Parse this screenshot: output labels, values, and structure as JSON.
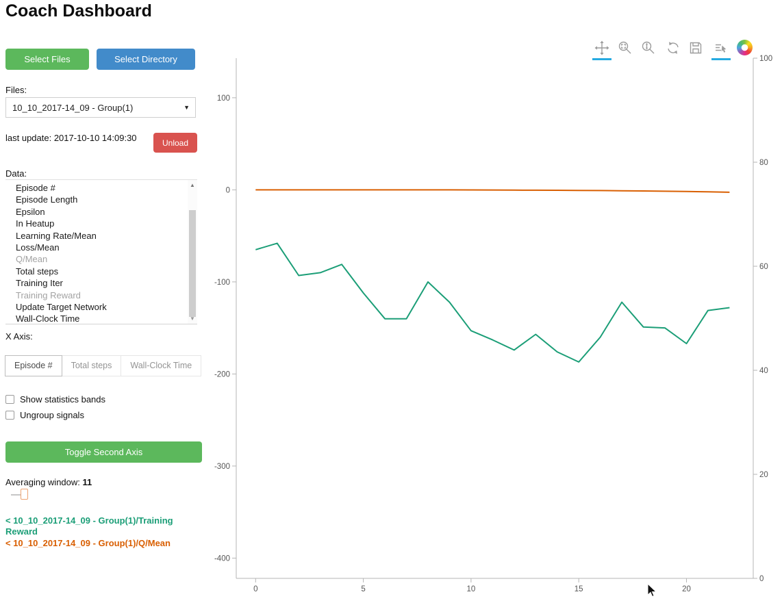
{
  "header": {
    "title": "Coach Dashboard"
  },
  "colors": {
    "success_green": "#5cb85c",
    "primary_blue": "#428bca",
    "danger_red": "#d9534f",
    "active_tool_blue": "#26aae1",
    "series_teal": "#1b9e77",
    "series_orange": "#d95f02"
  },
  "icons": {
    "caret_down": "▼",
    "scroll_up": "▲",
    "scroll_down": "▼"
  },
  "sidebar": {
    "select_files_label": "Select Files",
    "select_directory_label": "Select Directory",
    "files_label": "Files:",
    "files_dropdown_value": "10_10_2017-14_09 - Group(1)",
    "last_update_label": "last update: 2017-10-10 14:09:30",
    "unload_label": "Unload",
    "data_label": "Data:",
    "data_items": [
      {
        "label": "Episode #",
        "dimmed": false
      },
      {
        "label": "Episode Length",
        "dimmed": false
      },
      {
        "label": "Epsilon",
        "dimmed": false
      },
      {
        "label": "In Heatup",
        "dimmed": false
      },
      {
        "label": "Learning Rate/Mean",
        "dimmed": false
      },
      {
        "label": "Loss/Mean",
        "dimmed": false
      },
      {
        "label": "Q/Mean",
        "dimmed": true
      },
      {
        "label": "Total steps",
        "dimmed": false
      },
      {
        "label": "Training Iter",
        "dimmed": false
      },
      {
        "label": "Training Reward",
        "dimmed": true
      },
      {
        "label": "Update Target Network",
        "dimmed": false
      },
      {
        "label": "Wall-Clock Time",
        "dimmed": false
      }
    ],
    "x_axis_label": "X Axis:",
    "x_axis_options": [
      {
        "label": "Episode #",
        "active": true
      },
      {
        "label": "Total steps",
        "active": false
      },
      {
        "label": "Wall-Clock Time",
        "active": false
      }
    ],
    "checkboxes": [
      {
        "label": "Show statistics bands",
        "checked": false
      },
      {
        "label": "Ungroup signals",
        "checked": false
      }
    ],
    "toggle_second_axis_label": "Toggle Second Axis",
    "averaging_window_label": "Averaging window:",
    "averaging_window_value": "11",
    "legend": [
      {
        "label": "< 10_10_2017-14_09 - Group(1)/Training Reward",
        "color": "#1b9e77"
      },
      {
        "label": "< 10_10_2017-14_09 - Group(1)/Q/Mean",
        "color": "#d95f02"
      }
    ]
  },
  "toolbar": {
    "active_color": "#26aae1",
    "tools": [
      {
        "name": "pan",
        "active": true
      },
      {
        "name": "box-zoom",
        "active": false
      },
      {
        "name": "wheel-zoom",
        "active": false
      },
      {
        "name": "reset",
        "active": false
      },
      {
        "name": "save",
        "active": false
      },
      {
        "name": "hover",
        "active": true
      }
    ],
    "logo": "bokeh"
  },
  "chart_data": {
    "type": "line",
    "title": "",
    "xlabel": "",
    "ylabel": "",
    "grid": false,
    "legend_position": "sidebar",
    "x": [
      0,
      1,
      2,
      3,
      4,
      5,
      6,
      7,
      8,
      9,
      10,
      11,
      12,
      13,
      14,
      15,
      16,
      17,
      18,
      19,
      20,
      21,
      22
    ],
    "series": [
      {
        "name": "10_10_2017-14_09 - Group(1)/Training Reward",
        "color": "#1b9e77",
        "axis": "left",
        "values": [
          -65,
          -58,
          -93,
          -90,
          -81,
          -112,
          -140,
          -140,
          -100,
          -122,
          -153,
          -163,
          -174,
          -157,
          -176,
          -187,
          -160,
          -122,
          -149,
          -150,
          -167,
          -131,
          -128
        ]
      },
      {
        "name": "10_10_2017-14_09 - Group(1)/Q/Mean",
        "color": "#d95f02",
        "axis": "left",
        "values": [
          0,
          0,
          0,
          0,
          0,
          0,
          0,
          0,
          0,
          0,
          -0.1,
          -0.2,
          -0.3,
          -0.4,
          -0.5,
          -0.6,
          -0.8,
          -1.0,
          -1.2,
          -1.5,
          -1.8,
          -2.2,
          -2.6
        ]
      }
    ],
    "xlim": [
      -0.9,
      23.1
    ],
    "ylim_left": [
      -422,
      143
    ],
    "ylim_right": [
      0,
      100
    ],
    "x_ticks": [
      0,
      5,
      10,
      15,
      20
    ],
    "y_ticks_left": [
      100,
      0,
      -100,
      -200,
      -300,
      -400
    ],
    "y_ticks_right": [
      100,
      80,
      60,
      40,
      20,
      0
    ]
  }
}
